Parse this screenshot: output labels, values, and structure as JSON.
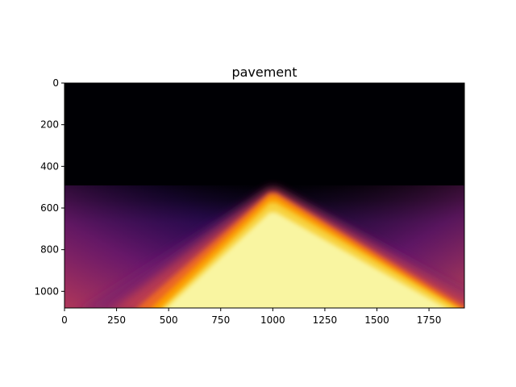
{
  "chart_data": {
    "type": "heatmap",
    "title": "pavement",
    "xlabel": "",
    "ylabel": "",
    "colormap": "inferno",
    "xlim": [
      0,
      1920
    ],
    "ylim": [
      1080,
      0
    ],
    "y_inverted": true,
    "grid": false,
    "x_ticks": [
      0,
      250,
      500,
      750,
      1000,
      1250,
      1500,
      1750
    ],
    "y_ticks": [
      0,
      200,
      400,
      600,
      800,
      1000
    ],
    "apex": [
      1000,
      520
    ],
    "bright_region_left_bottom_x": 470,
    "bright_region_right_bottom_x": 1920,
    "color_stops": [
      "#000004",
      "#1b0c41",
      "#4a0c6b",
      "#781c6d",
      "#a52c60",
      "#cf4446",
      "#ed6925",
      "#fb9b06",
      "#f7d13d",
      "#f9f5a1"
    ]
  }
}
